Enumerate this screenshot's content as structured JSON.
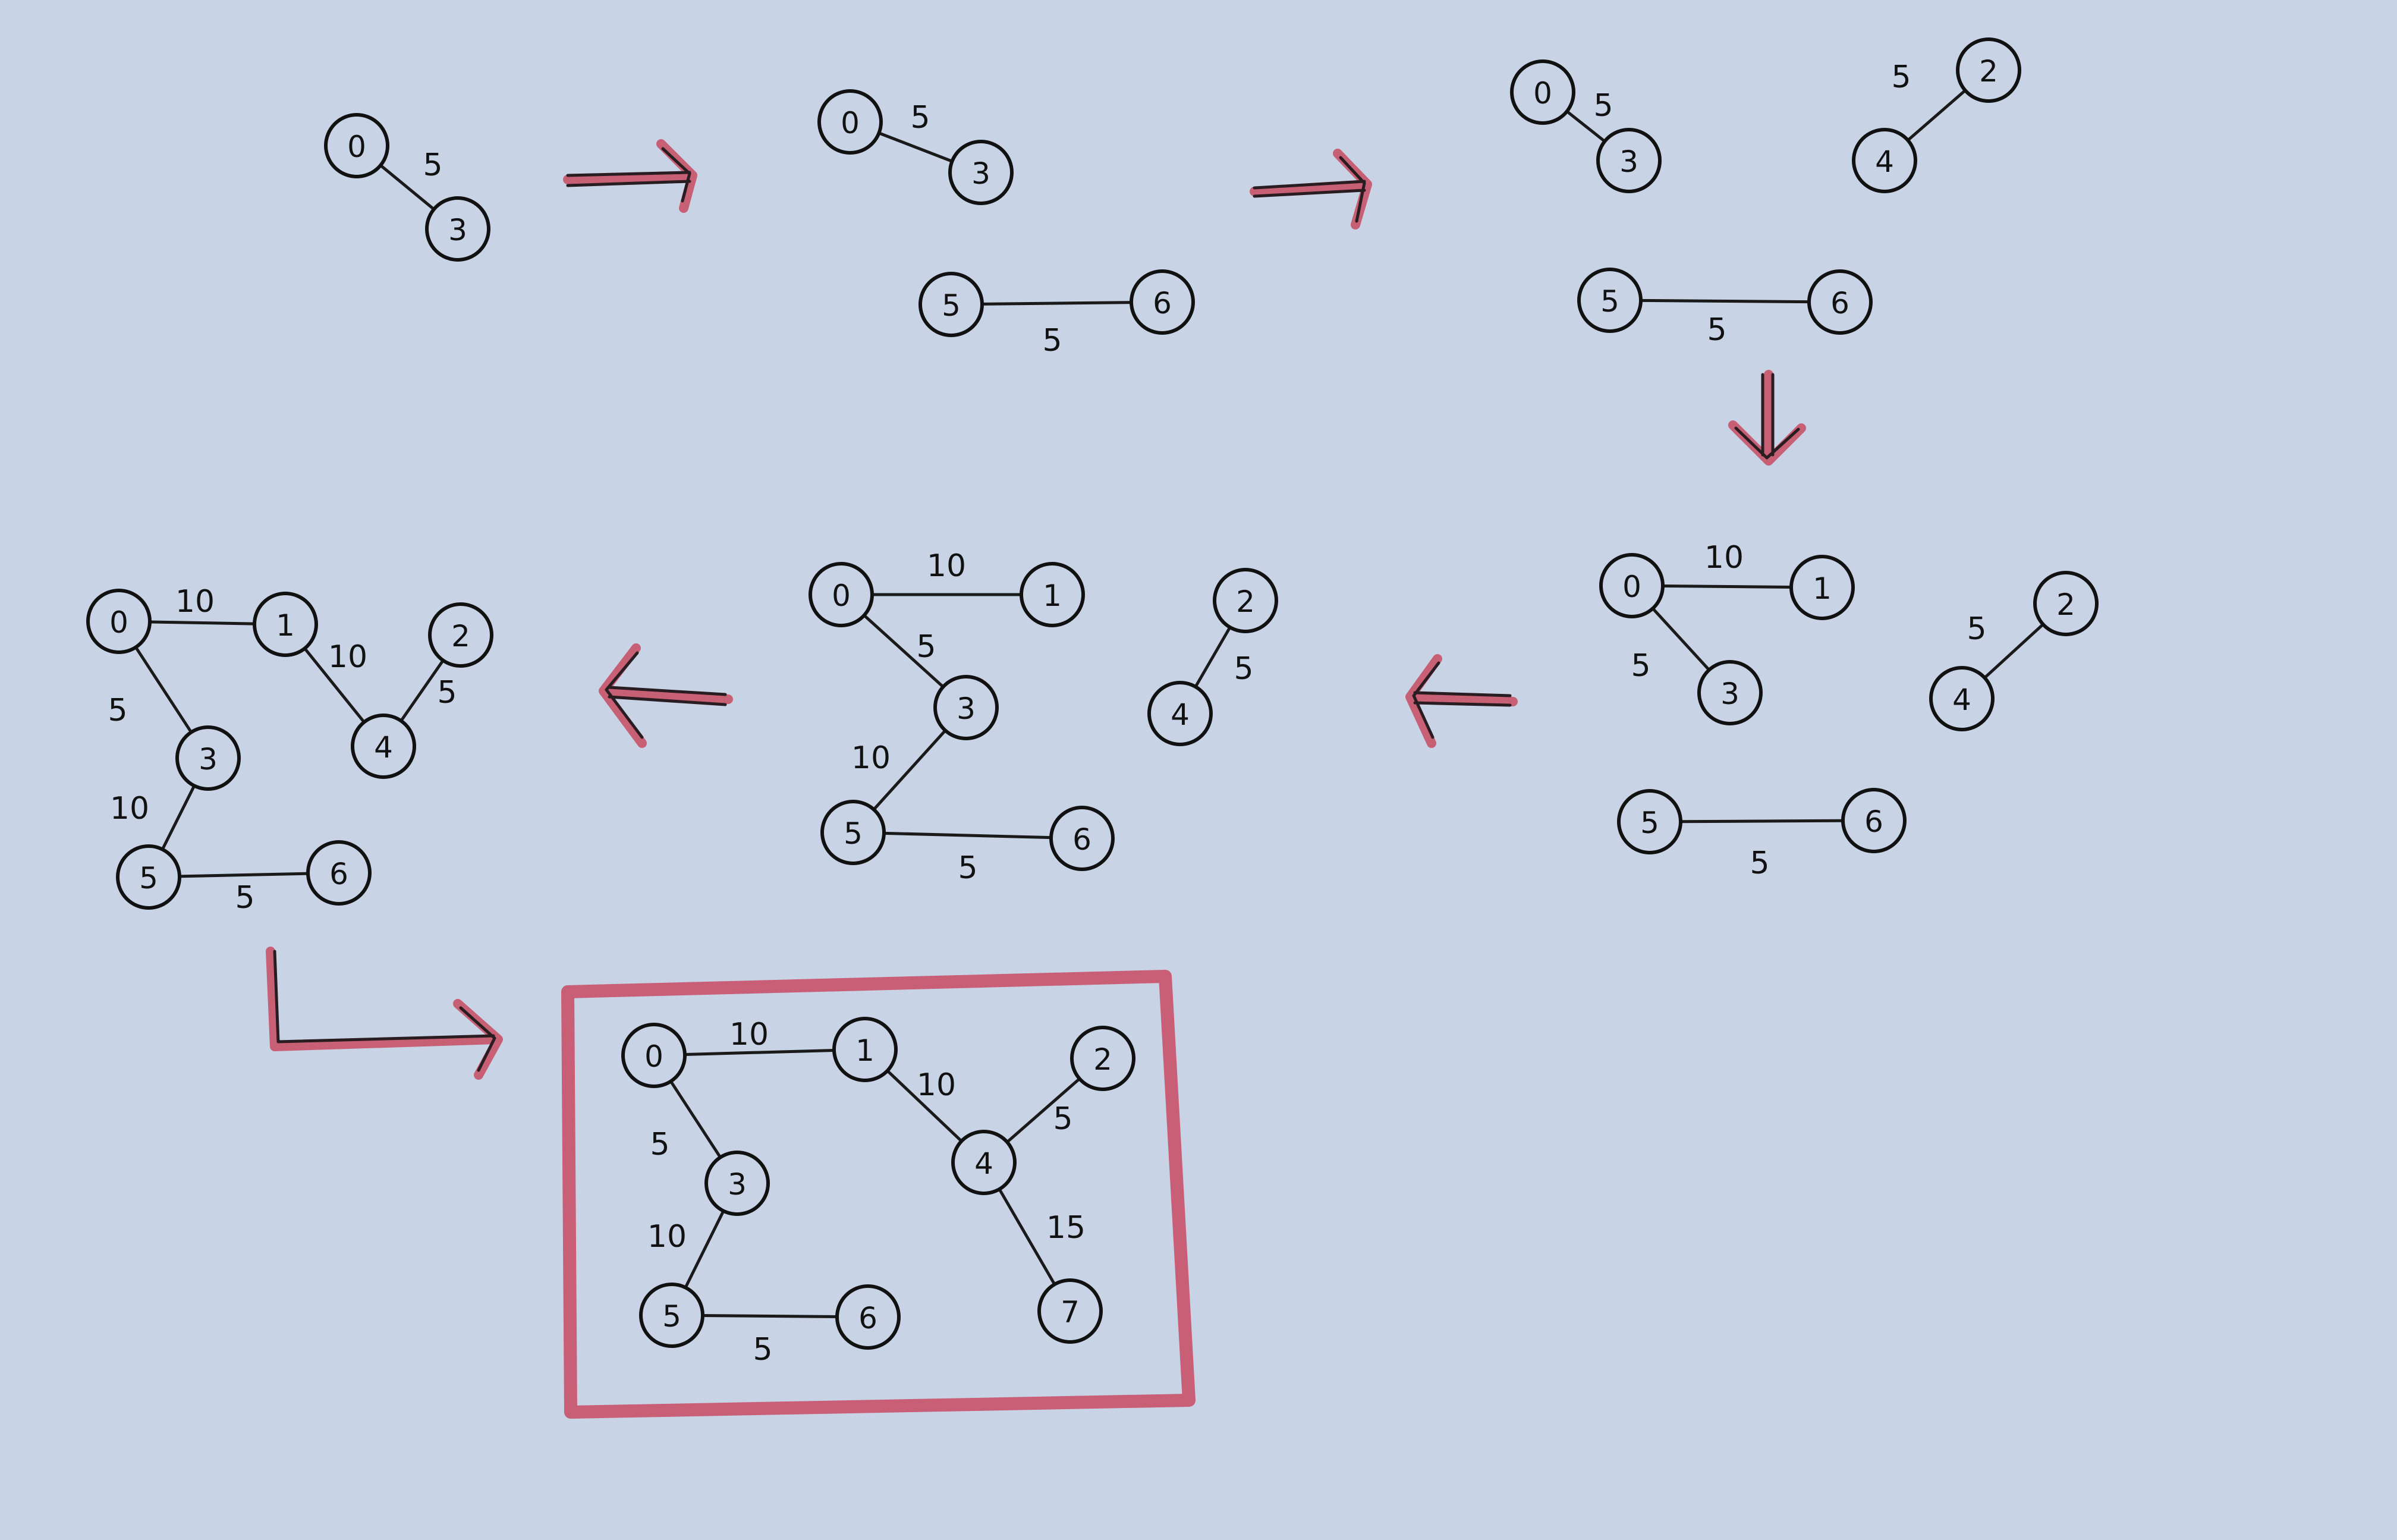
{
  "stages": [
    {
      "id": "stage-1",
      "nodes": [
        {
          "label": "0"
        },
        {
          "label": "3"
        }
      ],
      "edges": [
        {
          "from": "0",
          "to": "3",
          "weight": "5"
        }
      ]
    },
    {
      "id": "stage-2",
      "nodes": [
        {
          "label": "0"
        },
        {
          "label": "3"
        },
        {
          "label": "5"
        },
        {
          "label": "6"
        }
      ],
      "edges": [
        {
          "from": "0",
          "to": "3",
          "weight": "5"
        },
        {
          "from": "5",
          "to": "6",
          "weight": "5"
        }
      ]
    },
    {
      "id": "stage-3",
      "nodes": [
        {
          "label": "0"
        },
        {
          "label": "3"
        },
        {
          "label": "2"
        },
        {
          "label": "4"
        },
        {
          "label": "5"
        },
        {
          "label": "6"
        }
      ],
      "edges": [
        {
          "from": "0",
          "to": "3",
          "weight": "5"
        },
        {
          "from": "4",
          "to": "2",
          "weight": "5"
        },
        {
          "from": "5",
          "to": "6",
          "weight": "5"
        }
      ]
    },
    {
      "id": "stage-4",
      "nodes": [
        {
          "label": "0"
        },
        {
          "label": "1"
        },
        {
          "label": "3"
        },
        {
          "label": "2"
        },
        {
          "label": "4"
        },
        {
          "label": "5"
        },
        {
          "label": "6"
        }
      ],
      "edges": [
        {
          "from": "0",
          "to": "1",
          "weight": "10"
        },
        {
          "from": "0",
          "to": "3",
          "weight": "5"
        },
        {
          "from": "4",
          "to": "2",
          "weight": "5"
        },
        {
          "from": "5",
          "to": "6",
          "weight": "5"
        }
      ]
    },
    {
      "id": "stage-5",
      "nodes": [
        {
          "label": "0"
        },
        {
          "label": "1"
        },
        {
          "label": "3"
        },
        {
          "label": "5"
        },
        {
          "label": "6"
        },
        {
          "label": "2"
        },
        {
          "label": "4"
        }
      ],
      "edges": [
        {
          "from": "0",
          "to": "1",
          "weight": "10"
        },
        {
          "from": "0",
          "to": "3",
          "weight": "5"
        },
        {
          "from": "3",
          "to": "5",
          "weight": "10"
        },
        {
          "from": "5",
          "to": "6",
          "weight": "5"
        },
        {
          "from": "4",
          "to": "2",
          "weight": "5"
        }
      ]
    },
    {
      "id": "stage-6",
      "nodes": [
        {
          "label": "0"
        },
        {
          "label": "1"
        },
        {
          "label": "2"
        },
        {
          "label": "4"
        },
        {
          "label": "3"
        },
        {
          "label": "5"
        },
        {
          "label": "6"
        }
      ],
      "edges": [
        {
          "from": "0",
          "to": "1",
          "weight": "10"
        },
        {
          "from": "1",
          "to": "4",
          "weight": "10"
        },
        {
          "from": "4",
          "to": "2",
          "weight": "5"
        },
        {
          "from": "0",
          "to": "3",
          "weight": "5"
        },
        {
          "from": "3",
          "to": "5",
          "weight": "10"
        },
        {
          "from": "5",
          "to": "6",
          "weight": "5"
        }
      ]
    },
    {
      "id": "stage-final",
      "nodes": [
        {
          "label": "0"
        },
        {
          "label": "1"
        },
        {
          "label": "2"
        },
        {
          "label": "3"
        },
        {
          "label": "4"
        },
        {
          "label": "5"
        },
        {
          "label": "6"
        },
        {
          "label": "7"
        }
      ],
      "edges": [
        {
          "from": "0",
          "to": "1",
          "weight": "10"
        },
        {
          "from": "1",
          "to": "4",
          "weight": "10"
        },
        {
          "from": "4",
          "to": "2",
          "weight": "5"
        },
        {
          "from": "0",
          "to": "3",
          "weight": "5"
        },
        {
          "from": "3",
          "to": "5",
          "weight": "10"
        },
        {
          "from": "5",
          "to": "6",
          "weight": "5"
        },
        {
          "from": "4",
          "to": "7",
          "weight": "15"
        }
      ]
    }
  ],
  "colors": {
    "paper": "#c9d3e6",
    "ink": "#111111",
    "highlight": "#c9516a"
  }
}
